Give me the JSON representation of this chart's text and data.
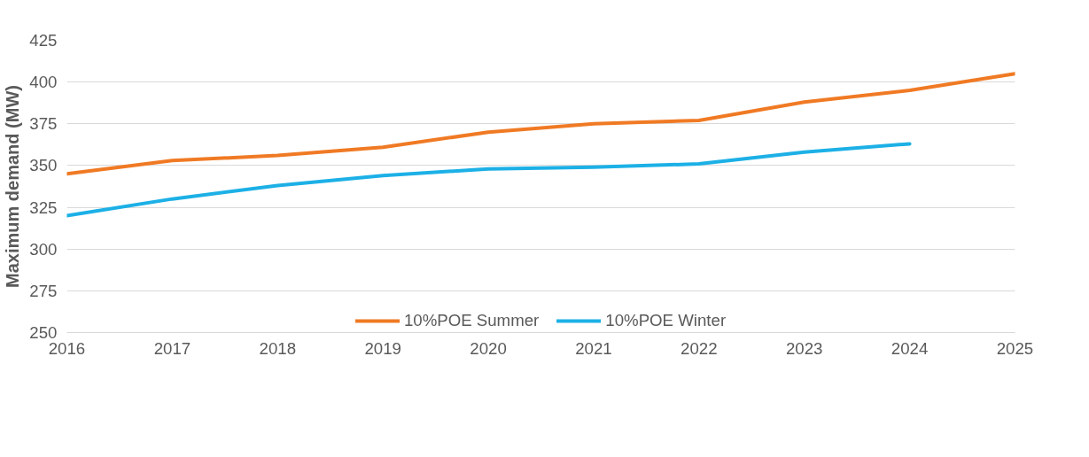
{
  "chart_data": {
    "type": "line",
    "ylabel": "Maximum demand (MW)",
    "x": [
      2016,
      2017,
      2018,
      2019,
      2020,
      2021,
      2022,
      2023,
      2024,
      2025
    ],
    "xlim": [
      2016,
      2025
    ],
    "xticks": [
      2016,
      2017,
      2018,
      2019,
      2020,
      2021,
      2022,
      2023,
      2024,
      2025
    ],
    "ylim": [
      250,
      425
    ],
    "yticks": [
      250,
      275,
      300,
      325,
      350,
      375,
      400,
      425
    ],
    "grid": "y",
    "legend": "bottom",
    "marker": "none",
    "line_style": "solid",
    "series": [
      {
        "name": "10%POE Summer",
        "color": "#f07a24",
        "values": [
          345,
          353,
          356,
          361,
          370,
          375,
          377,
          388,
          395,
          405
        ]
      },
      {
        "name": "10%POE Winter",
        "color": "#1cb0e6",
        "values": [
          320,
          330,
          338,
          344,
          348,
          349,
          351,
          358,
          363,
          null
        ]
      }
    ]
  }
}
